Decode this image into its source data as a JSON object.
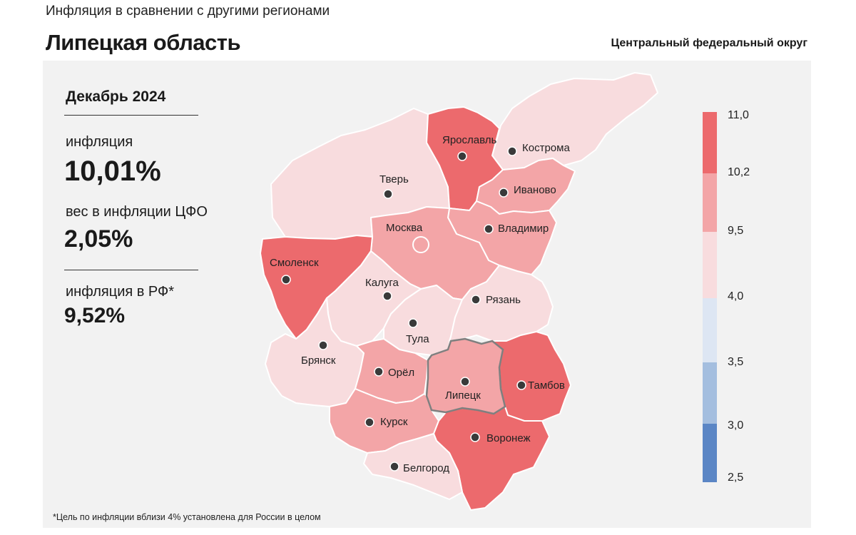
{
  "header": {
    "subtitle": "Инфляция в сравнении с другими регионами",
    "title": "Липецкая область",
    "district": "Центральный федеральный округ"
  },
  "stats": {
    "period": "Декабрь 2024",
    "inflation_label": "инфляция",
    "inflation_value": "10,01%",
    "weight_label": "вес в инфляции ЦФО",
    "weight_value": "2,05%",
    "rf_label": "инфляция в РФ*",
    "rf_value": "9,52%"
  },
  "footnote": "*Цель по инфляции вблизи 4% установлена для России в целом",
  "colors": {
    "above_10_2": "#ec6a6d",
    "from_9_5_to_10_2": "#f3a5a7",
    "from_4_0_to_9_5": "#f8dcde",
    "from_3_5_to_4_0": "#dde6f3",
    "from_3_0_to_3_5": "#a4bedf",
    "below_3_0": "#5b86c5",
    "highlight_border": "#7f7f7f"
  },
  "legend": {
    "ticks": [
      "11,0",
      "10,2",
      "9,5",
      "4,0",
      "3,5",
      "3,0",
      "2,5"
    ]
  },
  "regions": {
    "tver": "Тверь",
    "yaroslavl": "Ярославль",
    "kostroma": "Кострома",
    "ivanovo": "Иваново",
    "vladimir": "Владимир",
    "moscow": "Москва",
    "smolensk": "Смоленск",
    "kaluga": "Калуга",
    "tula": "Тула",
    "ryazan": "Рязань",
    "bryansk": "Брянск",
    "orel": "Орёл",
    "lipetsk": "Липецк",
    "tambov": "Тамбов",
    "kursk": "Курск",
    "voronezh": "Воронеж",
    "belgorod": "Белгород"
  },
  "region_colors": {
    "tver": "#f8dcde",
    "yaroslavl": "#ec6a6d",
    "kostroma": "#f8dcde",
    "ivanovo": "#f3a5a7",
    "vladimir": "#f3a5a7",
    "moscow": "#f3a5a7",
    "smolensk": "#ec6a6d",
    "kaluga": "#f8dcde",
    "tula": "#f8dcde",
    "ryazan": "#f8dcde",
    "bryansk": "#f8dcde",
    "orel": "#f3a5a7",
    "lipetsk": "#f3a5a7",
    "tambov": "#ec6a6d",
    "kursk": "#f3a5a7",
    "voronezh": "#ec6a6d",
    "belgorod": "#f8dcde"
  }
}
